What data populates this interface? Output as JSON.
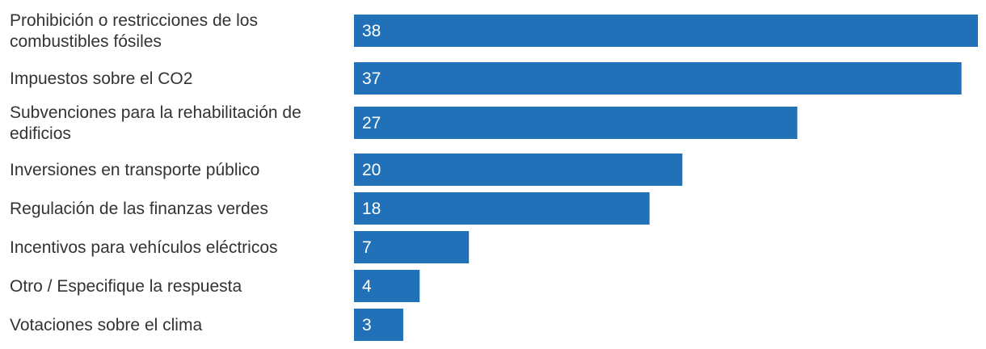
{
  "chart_data": {
    "type": "bar",
    "orientation": "horizontal",
    "categories": [
      [
        "Prohibición o restricciones de los",
        "combustibles fósiles"
      ],
      [
        "Impuestos sobre el CO2"
      ],
      [
        "Subvenciones para la rehabilitación de",
        "edificios"
      ],
      [
        "Inversiones en transporte público"
      ],
      [
        "Regulación de las finanzas verdes"
      ],
      [
        "Incentivos para vehículos eléctricos"
      ],
      [
        "Otro / Especifique la respuesta"
      ],
      [
        "Votaciones sobre el clima"
      ]
    ],
    "values": [
      38,
      37,
      27,
      20,
      18,
      7,
      4,
      3
    ],
    "bar_color": "#2171b8",
    "value_label_color": "#ffffff",
    "grid": false,
    "legend": "none"
  }
}
